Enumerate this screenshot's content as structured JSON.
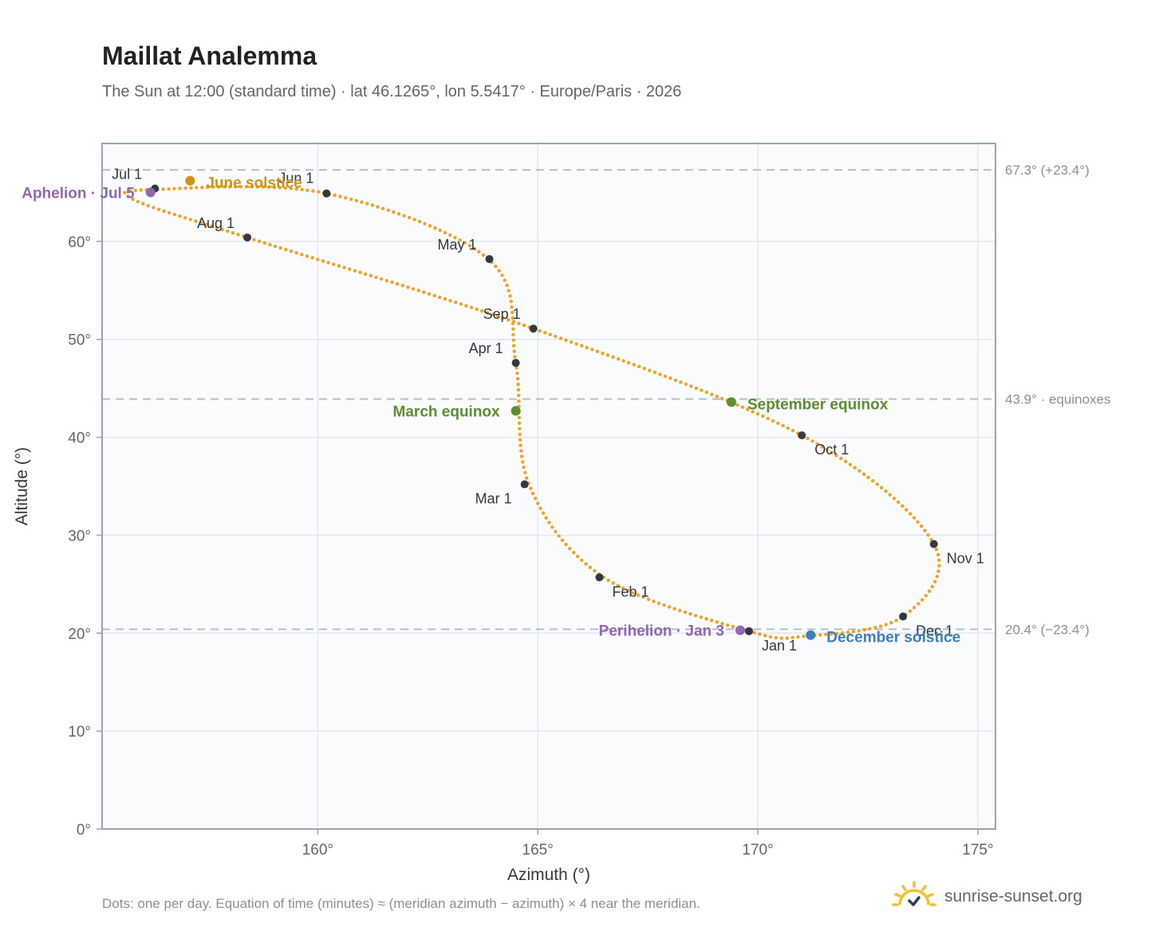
{
  "header": {
    "title": "Maillat Analemma",
    "subtitle": "The Sun at 12:00 (standard time) · lat 46.1265°, lon 5.5417° · Europe/Paris · 2026"
  },
  "footer": {
    "note": "Dots: one per day. Equation of time (minutes) ≈ (meridian azimuth − azimuth) × 4 near the meridian.",
    "brand": "sunrise-sunset.org",
    "brand_icon": "sun-logo-icon"
  },
  "colors": {
    "path": "#f2a227",
    "month_marker": "#333842",
    "june": "#d4920f",
    "march_sept": "#5a8f2e",
    "december": "#3a7dc0",
    "perihelion_aphelion": "#9166b3",
    "grid": "#e3e8ee",
    "ref_line": "#b4bfc8",
    "plot_bg": "#fafbfd",
    "frame": "#9aa4b1"
  },
  "chart_data": {
    "type": "scatter",
    "xlabel": "Azimuth (°)",
    "ylabel": "Altitude (°)",
    "xlim": [
      155.1,
      175.4
    ],
    "ylim": [
      0,
      70
    ],
    "xticks": [
      160,
      165,
      170,
      175
    ],
    "yticks": [
      0,
      10,
      20,
      30,
      40,
      50,
      60
    ],
    "tick_suffix": "°",
    "grid": true,
    "reference_lines": [
      {
        "y": 67.3,
        "label": "67.3° (+23.4°)"
      },
      {
        "y": 43.9,
        "label": "43.9° · equinoxes"
      },
      {
        "y": 20.4,
        "label": "20.4° (−23.4°)"
      }
    ],
    "path_points": [
      [
        169.8,
        20.2
      ],
      [
        166.5,
        25.7
      ],
      [
        164.8,
        35.2
      ],
      [
        164.5,
        47.6
      ],
      [
        163.9,
        58.1
      ],
      [
        160.2,
        64.9
      ],
      [
        156.3,
        65.3
      ],
      [
        155.8,
        64.3
      ],
      [
        158.4,
        60.4
      ],
      [
        164.9,
        51.1
      ],
      [
        171.0,
        40.2
      ],
      [
        174.0,
        29.1
      ],
      [
        173.3,
        21.7
      ],
      [
        171.1,
        19.7
      ],
      [
        169.8,
        20.2
      ]
    ],
    "month_markers": [
      {
        "label": "Jan 1",
        "az": 169.8,
        "alt": 20.2
      },
      {
        "label": "Feb 1",
        "az": 166.4,
        "alt": 25.7
      },
      {
        "label": "Mar 1",
        "az": 164.7,
        "alt": 35.2
      },
      {
        "label": "Apr 1",
        "az": 164.5,
        "alt": 47.6
      },
      {
        "label": "May 1",
        "az": 163.9,
        "alt": 58.2
      },
      {
        "label": "Jun 1",
        "az": 160.2,
        "alt": 64.9
      },
      {
        "label": "Jul 1",
        "az": 156.3,
        "alt": 65.4
      },
      {
        "label": "Aug 1",
        "az": 158.4,
        "alt": 60.4
      },
      {
        "label": "Sep 1",
        "az": 164.9,
        "alt": 51.1
      },
      {
        "label": "Oct 1",
        "az": 171.0,
        "alt": 40.2
      },
      {
        "label": "Nov 1",
        "az": 174.0,
        "alt": 29.1
      },
      {
        "label": "Dec 1",
        "az": 173.3,
        "alt": 21.7
      }
    ],
    "events": [
      {
        "label": "June solstice",
        "az": 157.1,
        "alt": 66.2,
        "color": "#d4920f"
      },
      {
        "label": "March equinox",
        "az": 164.5,
        "alt": 42.7,
        "color": "#5a8f2e"
      },
      {
        "label": "September equinox",
        "az": 169.4,
        "alt": 43.6,
        "color": "#5a8f2e"
      },
      {
        "label": "December solstice",
        "az": 171.2,
        "alt": 19.8,
        "color": "#3a7dc0"
      },
      {
        "label": "Perihelion · Jan 3",
        "az": 169.6,
        "alt": 20.3,
        "color": "#9166b3"
      },
      {
        "label": "Aphelion · Jul 5",
        "az": 156.2,
        "alt": 65.0,
        "color": "#9166b3"
      }
    ]
  }
}
